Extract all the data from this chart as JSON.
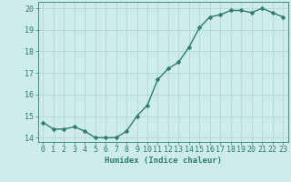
{
  "x": [
    0,
    1,
    2,
    3,
    4,
    5,
    6,
    7,
    8,
    9,
    10,
    11,
    12,
    13,
    14,
    15,
    16,
    17,
    18,
    19,
    20,
    21,
    22,
    23
  ],
  "y": [
    14.7,
    14.4,
    14.4,
    14.5,
    14.3,
    14.0,
    14.0,
    14.0,
    14.3,
    15.0,
    15.5,
    16.7,
    17.2,
    17.5,
    18.2,
    19.1,
    19.6,
    19.7,
    19.9,
    19.9,
    19.8,
    20.0,
    19.8,
    19.6
  ],
  "xlabel": "Humidex (Indice chaleur)",
  "ylim": [
    13.8,
    20.3
  ],
  "xlim": [
    -0.5,
    23.5
  ],
  "yticks": [
    14,
    15,
    16,
    17,
    18,
    19,
    20
  ],
  "xticks": [
    0,
    1,
    2,
    3,
    4,
    5,
    6,
    7,
    8,
    9,
    10,
    11,
    12,
    13,
    14,
    15,
    16,
    17,
    18,
    19,
    20,
    21,
    22,
    23
  ],
  "line_color": "#2e7d6e",
  "marker_color": "#2e7d6e",
  "bg_color": "#cdecea",
  "grid_color": "#aed4d2",
  "font_color": "#2e7d6e",
  "xlabel_fontsize": 6.5,
  "tick_fontsize": 6,
  "line_width": 1.0,
  "marker_size": 2.5
}
